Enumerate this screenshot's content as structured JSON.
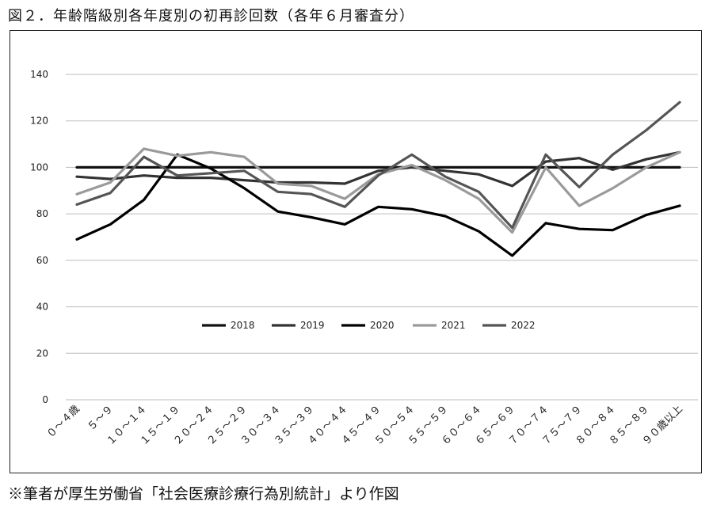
{
  "figure": {
    "title": "図２．年齢階級別各年度別の初再診回数（各年６月審査分）",
    "note": "※筆者が厚生労働省「社会医療診療行為別統計」より作図"
  },
  "chart_data": {
    "type": "line",
    "categories": [
      "０～４歳",
      "５～９",
      "１０～１４",
      "１５～１９",
      "２０～２４",
      "２５～２９",
      "３０～３４",
      "３５～３９",
      "４０～４４",
      "４５～４９",
      "５０～５４",
      "５５～５９",
      "６０～６４",
      "６５～６９",
      "７０～７４",
      "７５～７９",
      "８０～８４",
      "８５～８９",
      "９０歳以上"
    ],
    "yticks": [
      0,
      20,
      40,
      60,
      80,
      100,
      120,
      140
    ],
    "ylim": [
      0,
      140
    ],
    "grid": true,
    "legend_position": "inside-lower-center",
    "series": [
      {
        "name": "2018",
        "color": "#111111",
        "values": [
          100,
          100,
          100,
          100,
          100,
          100,
          100,
          100,
          100,
          100,
          100,
          100,
          100,
          100,
          100,
          100,
          100,
          100,
          100
        ]
      },
      {
        "name": "2019",
        "color": "#333333",
        "values": [
          96,
          95,
          96.5,
          95.5,
          95.5,
          94.5,
          93.5,
          93.5,
          93,
          98.5,
          100,
          98.5,
          97,
          92,
          102.5,
          104,
          99,
          103.5,
          106.5
        ]
      },
      {
        "name": "2020",
        "color": "#000000",
        "values": [
          69,
          75.5,
          86,
          105.5,
          99.5,
          91,
          81,
          78.5,
          75.5,
          83,
          82,
          79,
          72.5,
          62,
          76,
          73.5,
          73,
          79.5,
          83.5
        ]
      },
      {
        "name": "2021",
        "color": "#9a9a9a",
        "values": [
          88.5,
          93.5,
          108,
          105,
          106.5,
          104.5,
          93,
          92,
          86.5,
          97,
          101,
          94.5,
          86.5,
          72,
          100,
          83.5,
          91,
          100,
          106.5
        ]
      },
      {
        "name": "2022",
        "color": "#555555",
        "values": [
          84,
          89,
          104.5,
          96.5,
          97.5,
          98.5,
          89.5,
          88.5,
          83,
          96.5,
          105.5,
          96,
          89.5,
          74,
          105.5,
          91.5,
          105.5,
          116,
          128
        ]
      }
    ]
  }
}
